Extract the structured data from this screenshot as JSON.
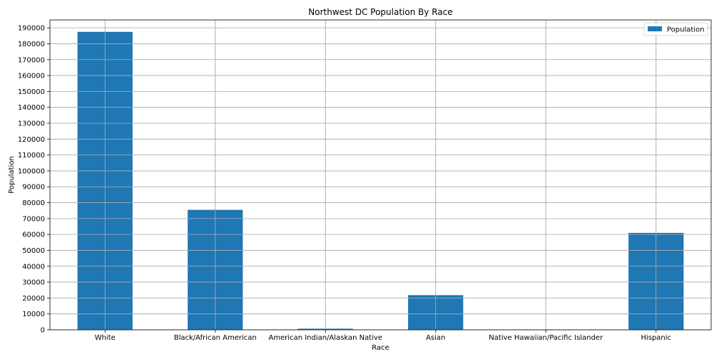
{
  "chart_data": {
    "type": "bar",
    "title": "Northwest DC Population By Race",
    "xlabel": "Race",
    "ylabel": "Population",
    "categories": [
      "White",
      "Black/African American",
      "American Indian/Alaskan Native",
      "Asian",
      "Native Hawaiian/Pacific Islander",
      "Hispanic"
    ],
    "series": [
      {
        "name": "Population",
        "values": [
          187500,
          75500,
          700,
          21800,
          100,
          61000
        ],
        "color": "#1f77b4"
      }
    ],
    "ylim": [
      0,
      195000
    ],
    "yticks": [
      0,
      10000,
      20000,
      30000,
      40000,
      50000,
      60000,
      70000,
      80000,
      90000,
      100000,
      110000,
      120000,
      130000,
      140000,
      150000,
      160000,
      170000,
      180000,
      190000
    ],
    "grid": true,
    "legend_position": "top-right"
  }
}
